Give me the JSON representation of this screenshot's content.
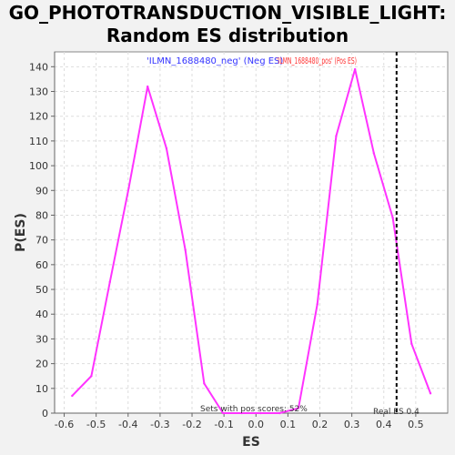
{
  "chart_data": {
    "type": "line",
    "title": [
      "GO_PHOTOTRANSDUCTION_VISIBLE_LIGHT:",
      "Random ES distribution"
    ],
    "xlabel": "ES",
    "ylabel": "P(ES)",
    "xlim": [
      -0.63,
      0.6
    ],
    "ylim": [
      0,
      146
    ],
    "xticks": [
      -0.6,
      -0.5,
      -0.4,
      -0.3,
      -0.2,
      -0.1,
      0.0,
      0.1,
      0.2,
      0.3,
      0.4,
      0.5
    ],
    "xtick_labels": [
      "-0.6",
      "-0.5",
      "-0.4",
      "-0.3",
      "-0.2",
      "-0.1",
      "0.0",
      "0.1",
      "0.2",
      "0.3",
      "0.4",
      "0.5"
    ],
    "yticks": [
      0,
      10,
      20,
      30,
      40,
      50,
      60,
      70,
      80,
      90,
      100,
      110,
      120,
      130,
      140
    ],
    "grid": true,
    "series": [
      {
        "color": "#ff33ff",
        "x": [
          -0.575,
          -0.515,
          -0.457,
          -0.398,
          -0.339,
          -0.28,
          -0.221,
          -0.162,
          -0.103,
          -0.044,
          0.015,
          0.074,
          0.133,
          0.192,
          0.251,
          0.31,
          0.369,
          0.428,
          0.487,
          0.546
        ],
        "y": [
          7,
          15,
          53,
          91,
          132,
          107,
          66,
          12,
          0,
          0,
          0,
          0,
          2,
          44,
          112,
          139,
          105,
          79,
          28,
          8
        ]
      }
    ],
    "real_es": 0.44,
    "legend": {
      "neg_label": "'ILMN_1688480_neg' (Neg ES)",
      "pos_label": "'ILMN_1688480_pos' (Pos ES)",
      "neg_color": "#3333ff",
      "pos_color": "#ff3333"
    },
    "annotations": {
      "pos_scores": "Sets with pos scores: 52%",
      "real_es": "Real ES 0.4"
    }
  }
}
